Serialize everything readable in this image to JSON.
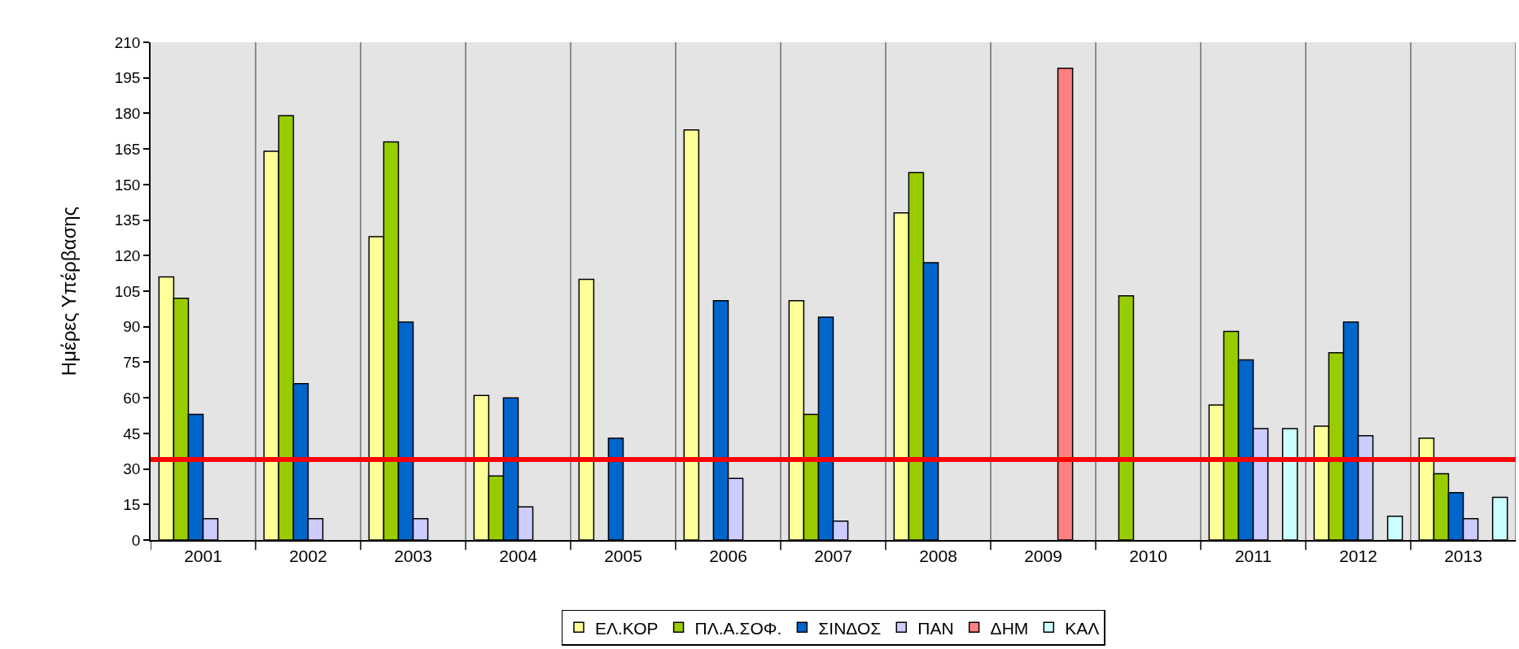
{
  "chart_data": {
    "type": "bar",
    "ylabel": "Ημέρες Υπέρβασης",
    "categories": [
      "2001",
      "2002",
      "2003",
      "2004",
      "2005",
      "2006",
      "2007",
      "2008",
      "2009",
      "2010",
      "2011",
      "2012",
      "2013"
    ],
    "series": [
      {
        "name": "ΕΛ.ΚΟΡ",
        "color": "#ffff99",
        "values": [
          111,
          164,
          128,
          61,
          110,
          173,
          101,
          138,
          null,
          null,
          57,
          48,
          43
        ]
      },
      {
        "name": "ΠΛ.Α.ΣΟΦ.",
        "color": "#99cc00",
        "values": [
          102,
          179,
          168,
          27,
          null,
          null,
          53,
          155,
          null,
          103,
          88,
          79,
          28
        ]
      },
      {
        "name": "ΣΙΝΔΟΣ",
        "color": "#0066cc",
        "values": [
          53,
          66,
          92,
          60,
          43,
          101,
          94,
          117,
          null,
          null,
          76,
          92,
          20
        ]
      },
      {
        "name": "ΠΑΝ",
        "color": "#ccccff",
        "values": [
          9,
          9,
          9,
          14,
          null,
          26,
          8,
          null,
          null,
          null,
          47,
          44,
          9
        ]
      },
      {
        "name": "ΔΗΜ",
        "color": "#ff8080",
        "values": [
          null,
          null,
          null,
          null,
          null,
          null,
          null,
          null,
          199,
          null,
          null,
          null,
          null
        ]
      },
      {
        "name": "ΚΑΛ",
        "color": "#ccffff",
        "values": [
          null,
          null,
          null,
          null,
          null,
          null,
          null,
          null,
          null,
          null,
          47,
          10,
          18
        ]
      }
    ],
    "ylim": [
      0,
      210
    ],
    "yticks": [
      0,
      15,
      30,
      45,
      60,
      75,
      90,
      105,
      120,
      135,
      150,
      165,
      180,
      195,
      210
    ],
    "ref_lines": [
      {
        "axis": "y",
        "value": 34,
        "color": "#ff0000"
      }
    ],
    "grid": "x",
    "legend": "bottom"
  }
}
